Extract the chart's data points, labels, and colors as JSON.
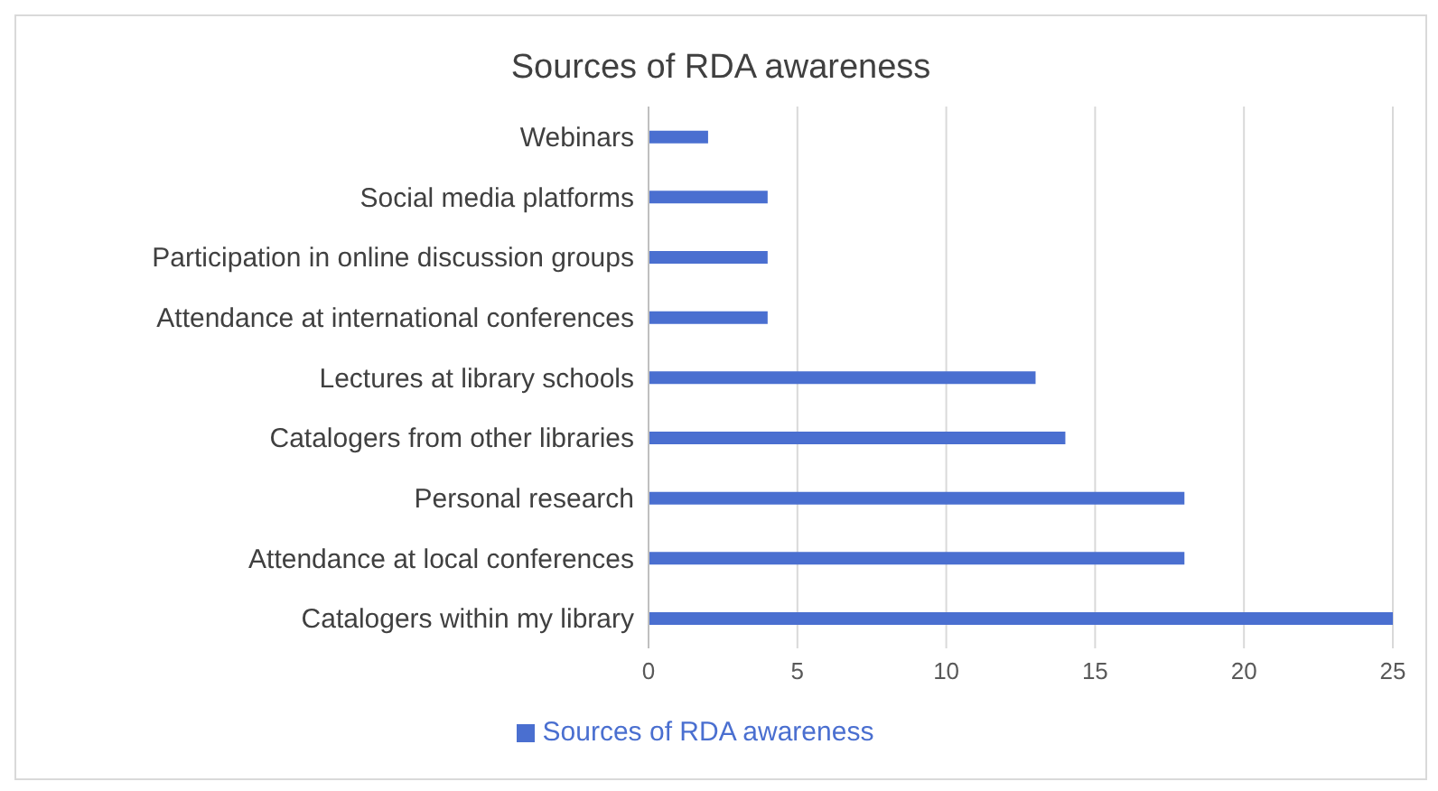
{
  "chart_data": {
    "type": "bar",
    "orientation": "horizontal",
    "title": "Sources of RDA awareness",
    "categories": [
      "Webinars",
      "Social media platforms",
      "Participation in online discussion groups",
      "Attendance at international conferences",
      "Lectures at library schools",
      "Catalogers from other libraries",
      "Personal research",
      "Attendance at local conferences",
      "Catalogers within my library"
    ],
    "series": [
      {
        "name": "Sources of RDA awareness",
        "color": "#4a6fd0",
        "values": [
          2,
          4,
          4,
          4,
          13,
          14,
          18,
          18,
          25
        ]
      }
    ],
    "xlim": [
      0,
      25
    ],
    "xticks": [
      0,
      5,
      10,
      15,
      20,
      25
    ],
    "grid": "x",
    "legend": "bottom"
  }
}
